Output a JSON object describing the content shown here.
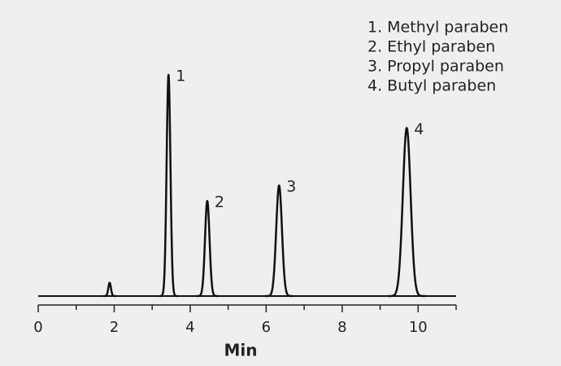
{
  "chart_data": {
    "type": "chromatogram",
    "x_label": "Min",
    "xlim": [
      0,
      11
    ],
    "xticks": [
      0,
      2,
      4,
      6,
      8,
      10
    ],
    "xminorticks": [
      1,
      3,
      5,
      7,
      9,
      11
    ],
    "color": "#111111",
    "peaks": [
      {
        "label": null,
        "x": 1.88,
        "height": 6
      },
      {
        "label": "1",
        "x": 3.43,
        "height": 100
      },
      {
        "label": "2",
        "x": 4.45,
        "height": 43
      },
      {
        "label": "3",
        "x": 6.34,
        "height": 50
      },
      {
        "label": "4",
        "x": 9.7,
        "height": 76
      }
    ],
    "legend": [
      "1. Methyl paraben",
      "2. Ethyl paraben",
      "3. Propyl paraben",
      "4. Butyl paraben"
    ]
  }
}
